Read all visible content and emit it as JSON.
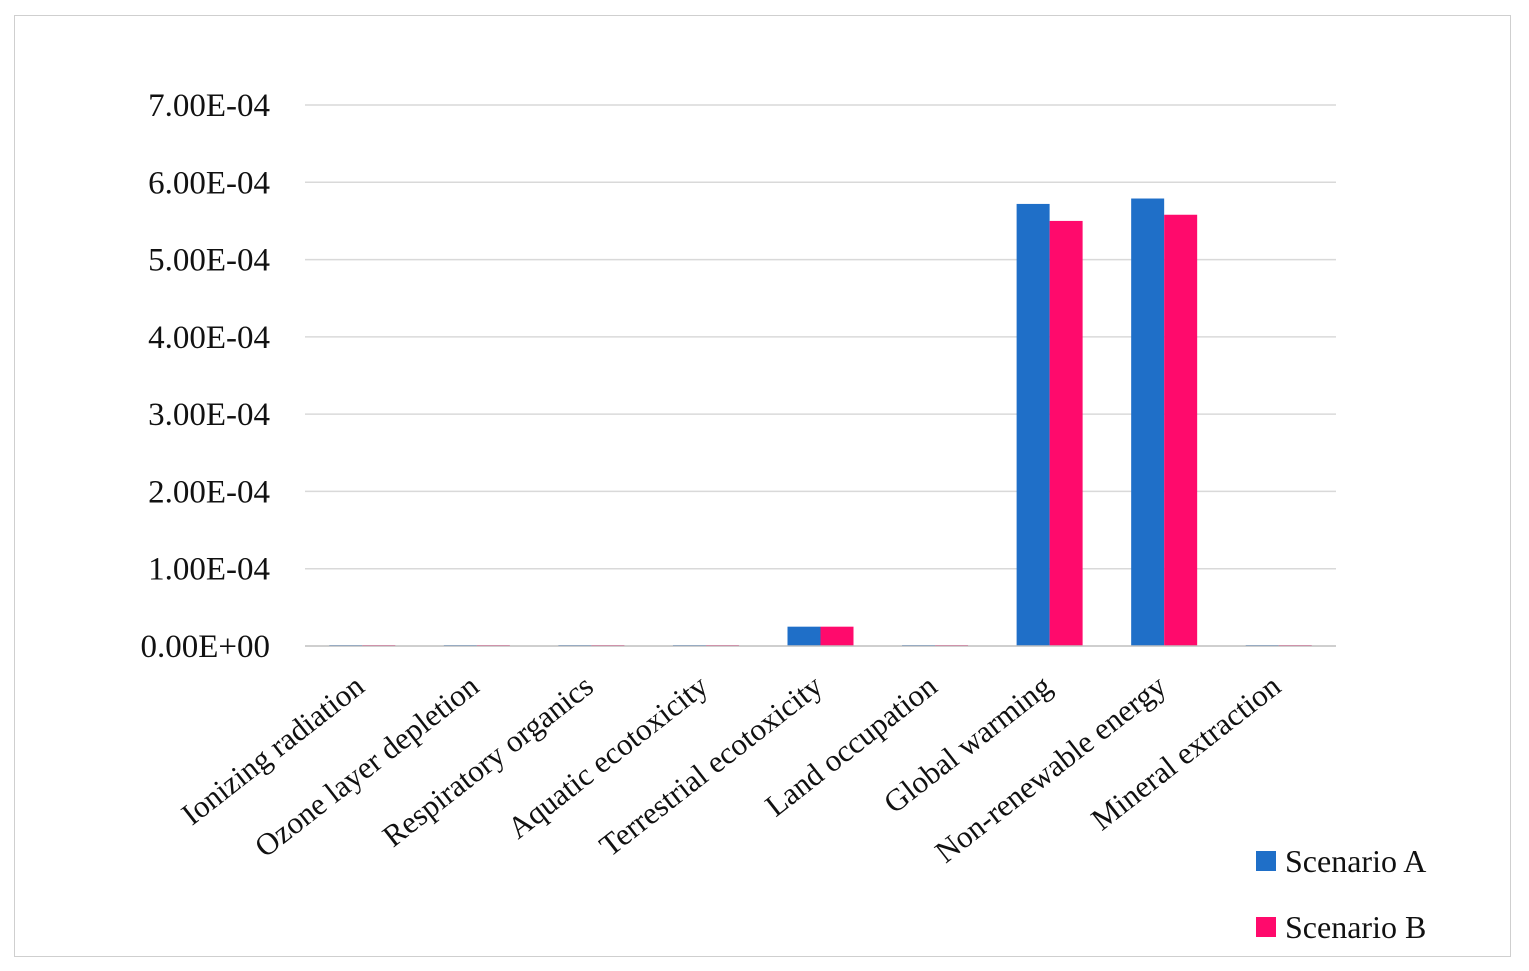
{
  "chart_data": {
    "type": "bar",
    "title": "",
    "xlabel": "",
    "ylabel": "",
    "ylim": [
      0,
      0.0007
    ],
    "yticks": [
      {
        "value": 0,
        "label": "0.00E+00"
      },
      {
        "value": 0.0001,
        "label": "1.00E-04"
      },
      {
        "value": 0.0002,
        "label": "2.00E-04"
      },
      {
        "value": 0.0003,
        "label": "3.00E-04"
      },
      {
        "value": 0.0004,
        "label": "4.00E-04"
      },
      {
        "value": 0.0005,
        "label": "5.00E-04"
      },
      {
        "value": 0.0006,
        "label": "6.00E-04"
      },
      {
        "value": 0.0007,
        "label": "7.00E-04"
      }
    ],
    "grid": true,
    "legend_position": "bottom-right",
    "categories": [
      "Ionizing radiation",
      "Ozone layer depletion",
      "Respiratory organics",
      "Aquatic ecotoxicity",
      "Terrestrial ecotoxicity",
      "Land occupation",
      "Global warming",
      "Non-renewable energy",
      "Mineral extraction"
    ],
    "series": [
      {
        "name": "Scenario A",
        "color": "#1f6fc8",
        "values": [
          3e-07,
          3e-07,
          3e-07,
          3e-07,
          2.5e-05,
          3e-07,
          0.000572,
          0.000579,
          3e-07
        ]
      },
      {
        "name": "Scenario B",
        "color": "#ff0a6c",
        "values": [
          3e-07,
          3e-07,
          3e-07,
          3e-07,
          2.5e-05,
          3e-07,
          0.00055,
          0.000558,
          3e-07
        ]
      }
    ]
  }
}
